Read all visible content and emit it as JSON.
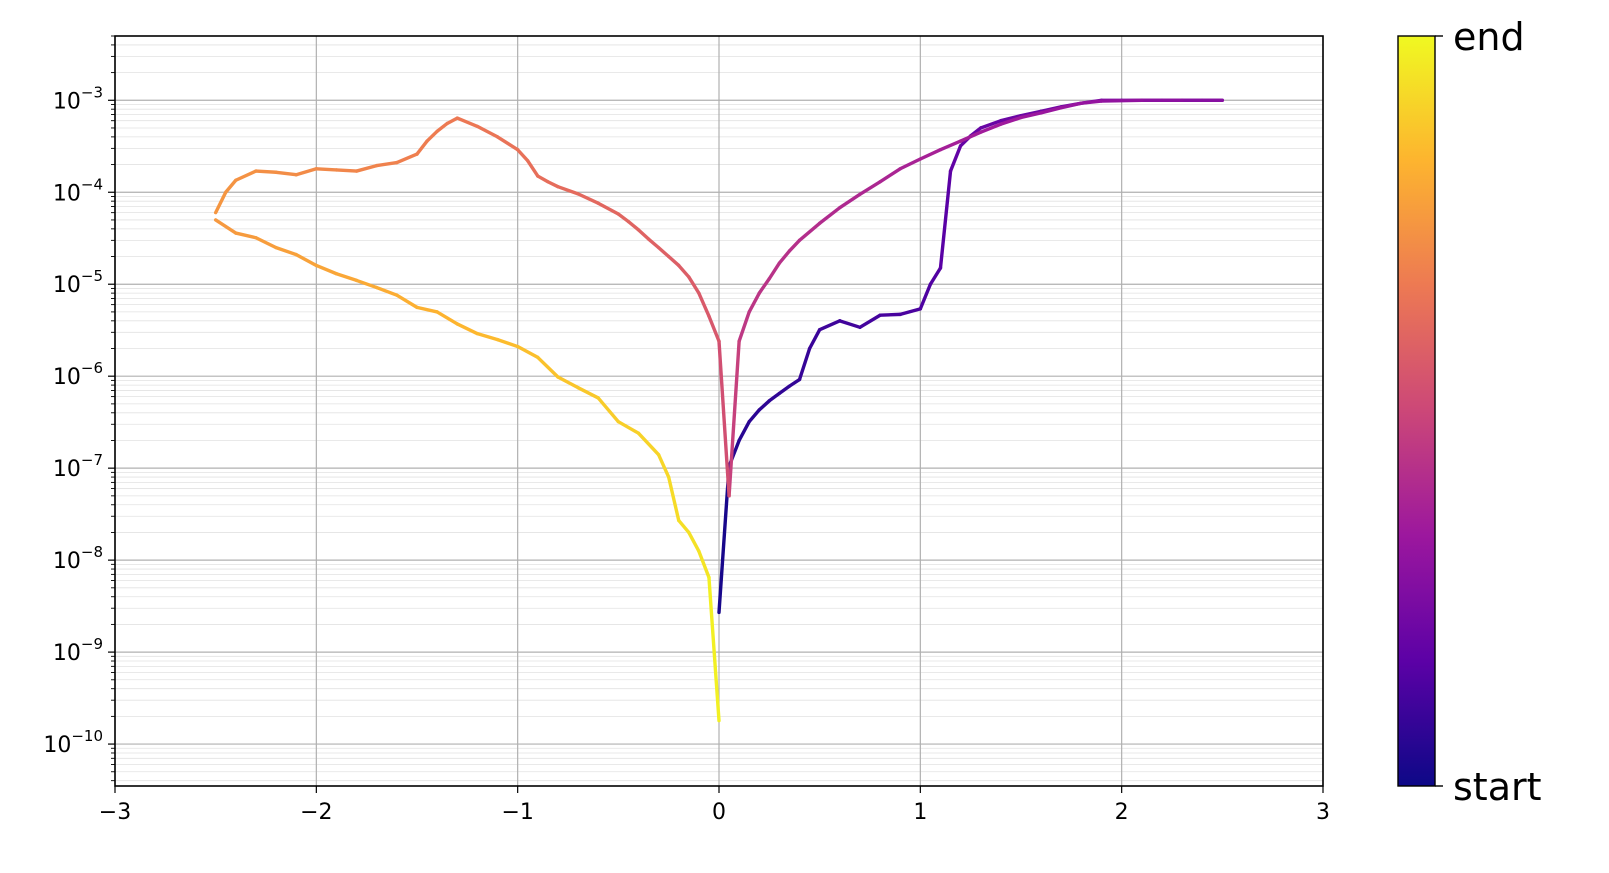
{
  "chart_data": {
    "type": "line",
    "title": "",
    "xlabel": "",
    "ylabel": "",
    "xlim": [
      -3,
      3
    ],
    "ylim": [
      3.5e-11,
      0.005
    ],
    "yscale": "log",
    "grid": true,
    "x_ticks": [
      -3,
      -2,
      -1,
      0,
      1,
      2,
      3
    ],
    "x_tick_labels": [
      "−3",
      "−2",
      "−1",
      "0",
      "1",
      "2",
      "3"
    ],
    "y_ticks": [
      -10,
      -9,
      -8,
      -7,
      -6,
      -5,
      -4,
      -3
    ],
    "y_tick_labels": [
      {
        "base": "10",
        "exp": "−10"
      },
      {
        "base": "10",
        "exp": "−9"
      },
      {
        "base": "10",
        "exp": "−8"
      },
      {
        "base": "10",
        "exp": "−7"
      },
      {
        "base": "10",
        "exp": "−6"
      },
      {
        "base": "10",
        "exp": "−5"
      },
      {
        "base": "10",
        "exp": "−4"
      },
      {
        "base": "10",
        "exp": "−3"
      }
    ],
    "colormap": "plasma",
    "colorbar": {
      "bottom_label": "start",
      "top_label": "end",
      "colors": [
        "#0d0887",
        "#5c01a6",
        "#9c179e",
        "#cc4778",
        "#ed7953",
        "#fdb42f",
        "#f0f921"
      ]
    },
    "series": [
      {
        "x": [
          0.0,
          0.05,
          0.1,
          0.15,
          0.2,
          0.25,
          0.3,
          0.35,
          0.4,
          0.45,
          0.5,
          0.6,
          0.7,
          0.8,
          0.9,
          1.0,
          1.05,
          1.1,
          1.15,
          1.2,
          1.25,
          1.3,
          1.4,
          1.5,
          1.6,
          1.7,
          1.8,
          1.9,
          2.0,
          2.1,
          2.2,
          2.3,
          2.4,
          2.5
        ],
        "y": [
          2.7e-09,
          1.05e-07,
          2e-07,
          3.2e-07,
          4.3e-07,
          5.4e-07,
          6.5e-07,
          7.8e-07,
          9.2e-07,
          2e-06,
          3.2e-06,
          4e-06,
          3.4e-06,
          4.6e-06,
          4.7e-06,
          5.4e-06,
          1e-05,
          1.5e-05,
          0.00017,
          0.00032,
          0.00041,
          0.0005,
          0.0006,
          0.00068,
          0.00076,
          0.00085,
          0.00093,
          0.001,
          0.001,
          0.001,
          0.001,
          0.001,
          0.001,
          0.001
        ]
      },
      {
        "x": [
          2.5,
          2.3,
          2.1,
          1.9,
          1.8,
          1.7,
          1.6,
          1.5,
          1.4,
          1.3,
          1.2,
          1.1,
          1.0,
          0.9,
          0.8,
          0.7,
          0.6,
          0.5,
          0.4,
          0.35,
          0.3,
          0.25,
          0.2,
          0.15,
          0.1,
          0.05,
          0.0,
          -0.05,
          -0.1,
          -0.15,
          -0.2,
          -0.25,
          -0.3,
          -0.35,
          -0.4,
          -0.45,
          -0.5,
          -0.6,
          -0.7,
          -0.8,
          -0.85,
          -0.9,
          -0.95,
          -1.0,
          -1.1,
          -1.2,
          -1.3,
          -1.35,
          -1.4,
          -1.45,
          -1.5,
          -1.6,
          -1.7,
          -1.8,
          -1.9,
          -2.0,
          -2.1,
          -2.2,
          -2.3,
          -2.4,
          -2.45,
          -2.5
        ],
        "y": [
          0.001,
          0.001,
          0.001,
          0.00098,
          0.00093,
          0.00083,
          0.00073,
          0.00065,
          0.00055,
          0.00045,
          0.00036,
          0.00029,
          0.00023,
          0.00018,
          0.00013,
          9.5e-05,
          6.8e-05,
          4.6e-05,
          3e-05,
          2.3e-05,
          1.7e-05,
          1.15e-05,
          8e-06,
          5e-06,
          2.4e-06,
          5e-08,
          2.4e-06,
          4.5e-06,
          8e-06,
          1.2e-05,
          1.6e-05,
          2e-05,
          2.5e-05,
          3.1e-05,
          3.9e-05,
          4.8e-05,
          5.8e-05,
          7.6e-05,
          9.6e-05,
          0.000115,
          0.00013,
          0.00015,
          0.00022,
          0.00029,
          0.0004,
          0.00052,
          0.00064,
          0.00056,
          0.00046,
          0.00036,
          0.00026,
          0.00021,
          0.000195,
          0.00017,
          0.000175,
          0.00018,
          0.000155,
          0.000165,
          0.00017,
          0.000135,
          0.0001,
          6e-05
        ]
      },
      {
        "x": [
          -2.5,
          -2.4,
          -2.3,
          -2.2,
          -2.1,
          -2.0,
          -1.9,
          -1.8,
          -1.7,
          -1.6,
          -1.5,
          -1.4,
          -1.3,
          -1.2,
          -1.1,
          -1.0,
          -0.9,
          -0.8,
          -0.7,
          -0.6,
          -0.5,
          -0.4,
          -0.3,
          -0.25,
          -0.2,
          -0.15,
          -0.1,
          -0.05,
          0.0
        ],
        "y": [
          5e-05,
          3.6e-05,
          3.2e-05,
          2.5e-05,
          2.1e-05,
          1.6e-05,
          1.3e-05,
          1.1e-05,
          9.2e-06,
          7.6e-06,
          5.6e-06,
          5e-06,
          3.7e-06,
          2.9e-06,
          2.5e-06,
          2.1e-06,
          1.6e-06,
          9.8e-07,
          7.5e-07,
          5.8e-07,
          3.2e-07,
          2.4e-07,
          1.4e-07,
          8e-08,
          2.7e-08,
          2e-08,
          1.25e-08,
          6.5e-09,
          1.8e-10
        ]
      }
    ]
  }
}
